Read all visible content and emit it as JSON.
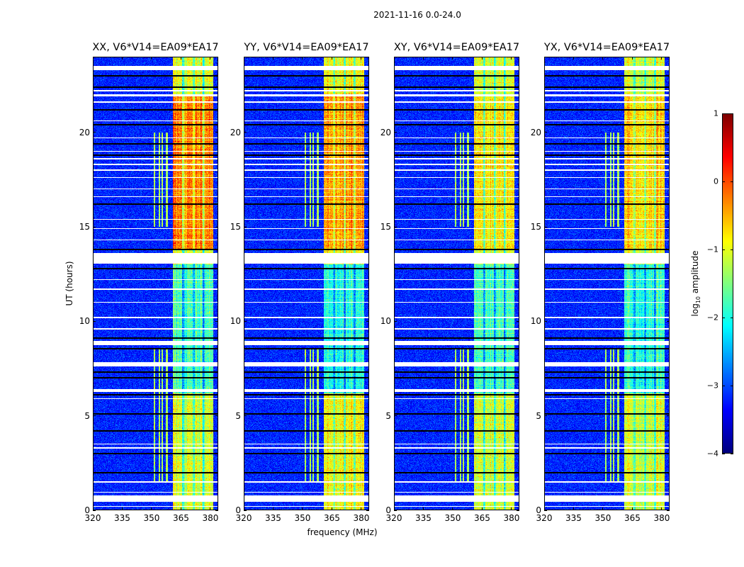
{
  "chart_data": {
    "type": "heatmap",
    "title": "2021-11-16 0.0-24.0",
    "xlabel": "frequency (MHz)",
    "ylabel": "UT (hours)",
    "xlim": [
      320,
      384
    ],
    "ylim": [
      0,
      24
    ],
    "xticks": [
      320,
      335,
      350,
      365,
      380
    ],
    "yticks": [
      0,
      5,
      10,
      15,
      20
    ],
    "colorbar": {
      "label_main": "log",
      "label_sub": "10",
      "label_rest": " amplitude",
      "range": [
        -4,
        1
      ],
      "ticks": [
        1,
        0,
        -1,
        -2,
        -3,
        -4
      ],
      "tick_labels": [
        "1",
        "0",
        "−1",
        "−2",
        "−3",
        "−4"
      ],
      "colormap": "jet"
    },
    "panels": [
      {
        "title": "XX, V6*V14=EA09*EA17",
        "band_level": {
          "day": -0.3,
          "mid": -1.8,
          "early": -1.1
        }
      },
      {
        "title": "YY, V6*V14=EA09*EA17",
        "band_level": {
          "day": -0.4,
          "mid": -2.0,
          "early": -0.9
        }
      },
      {
        "title": "XY, V6*V14=EA09*EA17",
        "band_level": {
          "day": -0.8,
          "mid": -1.8,
          "early": -1.1
        }
      },
      {
        "title": "YX, V6*V14=EA09*EA17",
        "band_level": {
          "day": -0.7,
          "mid": -1.9,
          "early": -1.1
        }
      }
    ],
    "background_level": -3.2,
    "rfi_band_mhz": [
      361,
      381.5
    ],
    "rfi_subband_gaps_mhz": [
      366,
      371.5,
      376.5
    ],
    "rfi_periods_hours": {
      "day": [
        13.8,
        22.0
      ],
      "mid": [
        6.2,
        13.0
      ],
      "early": [
        0,
        6.2
      ]
    },
    "narrow_lines_mhz": [
      351.5,
      354,
      355.5,
      357.5,
      358
    ],
    "flagged_hours": [
      [
        0.45,
        0.8
      ],
      [
        13.05,
        13.6
      ],
      [
        7.6,
        7.85
      ],
      [
        6.25,
        6.4
      ],
      [
        8.75,
        8.95
      ],
      [
        23.3,
        23.5
      ],
      [
        21.9,
        22.0
      ]
    ],
    "thin_flag_hours": [
      0.2,
      0.95,
      1.5,
      3.3,
      3.5,
      5.9,
      9.6,
      10.2,
      11.0,
      11.7,
      12.2,
      14.3,
      14.9,
      15.4,
      16.6,
      17.0,
      17.6,
      18.0,
      18.3,
      18.6,
      19.0,
      19.7,
      20.6,
      21.6,
      22.2
    ],
    "dark_row_hours": [
      23.0,
      22.4,
      21.2,
      20.4,
      19.4,
      18.8,
      16.2,
      13.8,
      12.8,
      9.1,
      8.55,
      7.3,
      7.0,
      6.1,
      5.1,
      4.2,
      3.0,
      2.0
    ]
  }
}
